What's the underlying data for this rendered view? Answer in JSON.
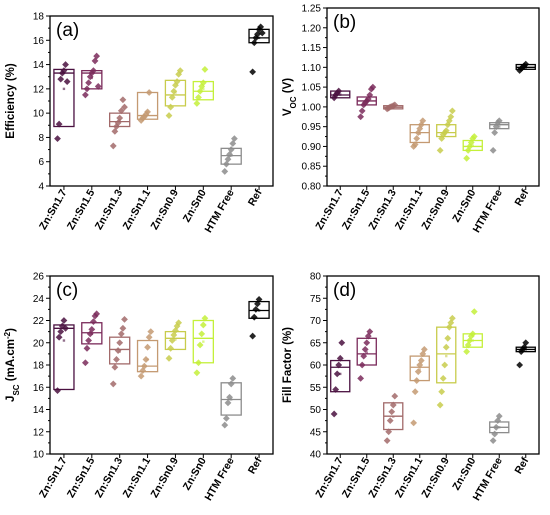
{
  "series_colors": [
    "#4a1040",
    "#7a2a5a",
    "#a26a6a",
    "#c49a72",
    "#c8cc4c",
    "#c4f03a",
    "#8c8c8c",
    "#000000"
  ],
  "chart_data": [
    {
      "type": "box",
      "panel_label": "(a)",
      "ylabel": "Efficiency (%)",
      "ylim": [
        4,
        18
      ],
      "yticks": [
        "4",
        "6",
        "8",
        "10",
        "12",
        "14",
        "16",
        "18"
      ],
      "categories": [
        "Zn:Sn1.7",
        "Zn:Sn1.5",
        "Zn:Sn1.3",
        "Zn:Sn1.1",
        "Zn:Sn0.9",
        "Zn:Sn0",
        "HTM Free",
        "Ref"
      ],
      "boxes": [
        {
          "q1": 8.9,
          "median": 13.3,
          "q3": 13.6,
          "mean": 12.0,
          "points": [
            7.9,
            9.1,
            12.8,
            13.3,
            13.5,
            14.0,
            12.6
          ]
        },
        {
          "q1": 12.0,
          "median": 13.3,
          "q3": 13.5,
          "mean": 12.9,
          "points": [
            11.5,
            12.0,
            12.5,
            13.0,
            13.3,
            13.5,
            14.3,
            14.7,
            12.2
          ]
        },
        {
          "q1": 8.9,
          "median": 9.3,
          "q3": 10.0,
          "mean": 9.4,
          "points": [
            7.3,
            8.5,
            8.9,
            9.2,
            9.6,
            10.2,
            11.1,
            10.5
          ]
        },
        {
          "q1": 9.5,
          "median": 9.8,
          "q3": 11.7,
          "mean": 10.1,
          "points": [
            9.4,
            9.6,
            9.7,
            9.9,
            10.1,
            11.7
          ]
        },
        {
          "q1": 10.6,
          "median": 11.5,
          "q3": 12.7,
          "mean": 11.7,
          "points": [
            9.8,
            10.5,
            11.3,
            11.8,
            12.3,
            12.6,
            13.2,
            13.5
          ]
        },
        {
          "q1": 11.1,
          "median": 11.8,
          "q3": 12.6,
          "mean": 12.0,
          "points": [
            10.8,
            11.3,
            11.8,
            12.2,
            12.5,
            13.6
          ]
        },
        {
          "q1": 5.8,
          "median": 6.5,
          "q3": 7.1,
          "mean": 6.5,
          "points": [
            5.2,
            5.8,
            6.2,
            6.6,
            7.0,
            7.5,
            7.9
          ]
        },
        {
          "q1": 15.8,
          "median": 16.2,
          "q3": 16.9,
          "mean": 16.2,
          "points": [
            13.4,
            15.8,
            16.2,
            16.5,
            16.9,
            17.1,
            16.6
          ]
        }
      ]
    },
    {
      "type": "box",
      "panel_label": "(b)",
      "ylabel": "V",
      "ylabel_sub": "OC",
      "ylabel_tail": " (V)",
      "ylim": [
        0.8,
        1.25
      ],
      "yticks": [
        "0.80",
        "0.85",
        "0.90",
        "0.95",
        "1.00",
        "1.05",
        "1.10",
        "1.15",
        "1.20",
        "1.25"
      ],
      "categories": [
        "Zn:Sn1.7",
        "Zn:Sn1.5",
        "Zn:Sn1.3",
        "Zn:Sn1.1",
        "Zn:Sn0.9",
        "Zn:Sn0",
        "HTM Free",
        "Ref"
      ],
      "boxes": [
        {
          "q1": 1.023,
          "median": 1.03,
          "q3": 1.04,
          "mean": 1.031,
          "points": [
            1.023,
            1.03,
            1.035,
            1.04
          ]
        },
        {
          "q1": 1.005,
          "median": 1.015,
          "q3": 1.025,
          "mean": 1.015,
          "points": [
            0.975,
            0.99,
            1.005,
            1.01,
            1.015,
            1.02,
            1.03,
            1.045,
            1.05
          ]
        },
        {
          "q1": 0.995,
          "median": 0.999,
          "q3": 1.003,
          "mean": 0.999,
          "points": [
            0.995,
            0.997,
            1.0,
            1.001,
            1.003,
            1.005
          ]
        },
        {
          "q1": 0.91,
          "median": 0.935,
          "q3": 0.955,
          "mean": 0.932,
          "points": [
            0.9,
            0.905,
            0.92,
            0.935,
            0.945,
            0.955,
            0.965
          ]
        },
        {
          "q1": 0.925,
          "median": 0.935,
          "q3": 0.955,
          "mean": 0.937,
          "points": [
            0.89,
            0.92,
            0.93,
            0.935,
            0.94,
            0.955,
            0.965,
            0.975,
            0.99
          ]
        },
        {
          "q1": 0.89,
          "median": 0.9,
          "q3": 0.915,
          "mean": 0.902,
          "points": [
            0.87,
            0.89,
            0.9,
            0.91,
            0.92,
            0.925
          ]
        },
        {
          "q1": 0.945,
          "median": 0.955,
          "q3": 0.96,
          "mean": 0.95,
          "points": [
            0.89,
            0.935,
            0.95,
            0.96,
            0.965
          ]
        },
        {
          "q1": 1.095,
          "median": 1.1,
          "q3": 1.107,
          "mean": 1.1,
          "points": [
            1.092,
            1.097,
            1.1,
            1.104,
            1.108
          ]
        }
      ]
    },
    {
      "type": "box",
      "panel_label": "(c)",
      "ylabel": "J",
      "ylabel_sub": "SC",
      "ylabel_tail": " (mA.cm",
      "ylabel_sup": "-2",
      "ylabel_end": ")",
      "ylim": [
        10,
        26
      ],
      "yticks": [
        "10",
        "12",
        "14",
        "16",
        "18",
        "20",
        "22",
        "24",
        "26"
      ],
      "categories": [
        "Zn:Sn1.7",
        "Zn:Sn1.5",
        "Zn:Sn1.3",
        "Zn:Sn1.1",
        "Zn:Sn0.9",
        "Zn:Sn0",
        "HTM Free",
        "Ref"
      ],
      "boxes": [
        {
          "q1": 15.8,
          "median": 21.3,
          "q3": 21.6,
          "mean": 20.2,
          "points": [
            15.7,
            20.5,
            21.0,
            21.5,
            22.0,
            21.3
          ]
        },
        {
          "q1": 19.9,
          "median": 20.9,
          "q3": 21.8,
          "mean": 20.8,
          "points": [
            18.2,
            19.5,
            20.2,
            20.8,
            21.2,
            21.9,
            22.4,
            22.6
          ]
        },
        {
          "q1": 18.1,
          "median": 19.4,
          "q3": 20.5,
          "mean": 19.2,
          "points": [
            16.3,
            17.8,
            18.5,
            19.3,
            20.0,
            20.8,
            21.3,
            22.1
          ]
        },
        {
          "q1": 17.4,
          "median": 17.9,
          "q3": 20.2,
          "mean": 18.5,
          "points": [
            17.0,
            17.5,
            17.9,
            18.5,
            19.6,
            20.5,
            21.0
          ]
        },
        {
          "q1": 19.4,
          "median": 20.4,
          "q3": 21.0,
          "mean": 20.3,
          "points": [
            18.6,
            19.5,
            20.2,
            20.7,
            21.1,
            21.5,
            21.8
          ]
        },
        {
          "q1": 18.2,
          "median": 20.4,
          "q3": 22.0,
          "mean": 20.1,
          "points": [
            17.3,
            18.2,
            19.8,
            20.8,
            21.6,
            22.2
          ]
        },
        {
          "q1": 13.5,
          "median": 14.9,
          "q3": 16.4,
          "mean": 14.9,
          "points": [
            12.6,
            13.2,
            14.6,
            15.1,
            16.3,
            16.8
          ]
        },
        {
          "q1": 22.2,
          "median": 22.9,
          "q3": 23.7,
          "mean": 22.9,
          "points": [
            20.6,
            22.3,
            23.0,
            23.5,
            23.9
          ]
        }
      ]
    },
    {
      "type": "box",
      "panel_label": "(d)",
      "ylabel": "Fill Factor (%)",
      "ylim": [
        40,
        80
      ],
      "yticks": [
        "40",
        "45",
        "50",
        "55",
        "60",
        "65",
        "70",
        "75",
        "80"
      ],
      "categories": [
        "Zn:Sn1.7",
        "Zn:Sn1.5",
        "Zn:Sn1.3",
        "Zn:Sn1.1",
        "Zn:Sn0.9",
        "Zn:Sn0",
        "HTM Free",
        "Ref"
      ],
      "boxes": [
        {
          "q1": 54.0,
          "median": 59.5,
          "q3": 61.0,
          "mean": 58.0,
          "points": [
            49.0,
            54.5,
            58.0,
            60.0,
            61.5,
            65.0
          ]
        },
        {
          "q1": 60.0,
          "median": 62.5,
          "q3": 66.0,
          "mean": 62.8,
          "points": [
            57.0,
            60.0,
            62.0,
            63.5,
            65.0,
            66.5,
            67.5
          ]
        },
        {
          "q1": 45.5,
          "median": 48.5,
          "q3": 51.5,
          "mean": 48.4,
          "points": [
            43.0,
            45.0,
            47.5,
            49.5,
            51.0,
            53.0
          ]
        },
        {
          "q1": 56.5,
          "median": 59.5,
          "q3": 62.0,
          "mean": 59.0,
          "points": [
            47.0,
            54.0,
            56.5,
            58.5,
            60.0,
            61.0,
            62.5,
            63.5
          ]
        },
        {
          "q1": 56.0,
          "median": 62.5,
          "q3": 68.5,
          "mean": 62.0,
          "points": [
            51.0,
            54.0,
            57.0,
            60.0,
            64.0,
            66.0,
            68.5,
            69.5,
            70.5
          ]
        },
        {
          "q1": 64.0,
          "median": 65.5,
          "q3": 67.0,
          "mean": 65.5,
          "points": [
            63.0,
            64.5,
            65.5,
            66.5,
            67.0,
            72.0
          ]
        },
        {
          "q1": 44.8,
          "median": 46.0,
          "q3": 47.2,
          "mean": 46.0,
          "points": [
            43.0,
            44.5,
            46.0,
            47.5,
            48.5
          ]
        },
        {
          "q1": 63.0,
          "median": 63.5,
          "q3": 64.0,
          "mean": 63.5,
          "points": [
            60.0,
            63.0,
            63.5,
            64.0,
            65.0
          ]
        }
      ]
    }
  ]
}
